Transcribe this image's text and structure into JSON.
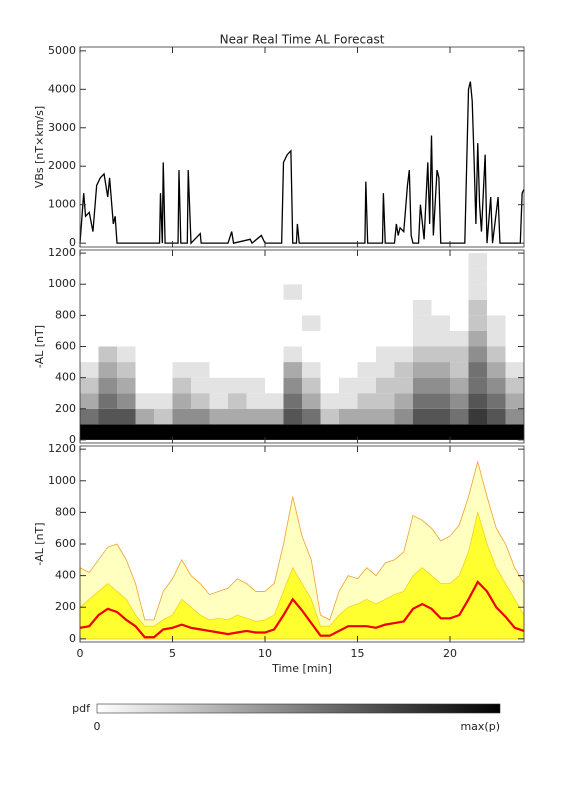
{
  "title": "Near Real Time AL Forecast",
  "colorbar": {
    "label": "pdf",
    "min_label": "0",
    "max_label": "max(p)"
  },
  "chart_data": [
    {
      "type": "line",
      "ylabel": "VBs [nT×km/s]",
      "color": "#000000",
      "xlim": [
        0,
        24
      ],
      "xticks": [
        0,
        5,
        10,
        15,
        20
      ],
      "ylim": [
        -100,
        5100
      ],
      "yticks": [
        0,
        1000,
        2000,
        3000,
        4000,
        5000
      ],
      "x": [
        0,
        0.2,
        0.3,
        0.5,
        0.7,
        0.9,
        1.1,
        1.3,
        1.5,
        1.6,
        1.8,
        1.9,
        2.0,
        4.3,
        4.35,
        4.45,
        4.5,
        4.6,
        5.3,
        5.35,
        5.45,
        5.8,
        5.85,
        6.0,
        6.5,
        6.55,
        8.0,
        8.2,
        8.3,
        9.2,
        9.3,
        9.8,
        10.0,
        10.9,
        11.0,
        11.2,
        11.4,
        11.5,
        11.7,
        11.75,
        11.85,
        15.4,
        15.45,
        15.55,
        16.35,
        16.4,
        16.5,
        17.0,
        17.1,
        17.2,
        17.3,
        17.5,
        17.7,
        17.8,
        17.9,
        18.0,
        18.3,
        18.4,
        18.6,
        18.8,
        18.9,
        19.0,
        19.1,
        19.3,
        19.4,
        19.5,
        20.8,
        21.0,
        21.1,
        21.2,
        21.3,
        21.4,
        21.5,
        21.6,
        21.7,
        21.9,
        22.0,
        22.2,
        22.3,
        22.6,
        22.7,
        23.8,
        23.9,
        24.0
      ],
      "values": [
        0,
        1300,
        700,
        800,
        300,
        1500,
        1700,
        1800,
        1200,
        1700,
        500,
        700,
        0,
        0,
        1300,
        0,
        2100,
        0,
        0,
        1900,
        0,
        0,
        1900,
        0,
        250,
        0,
        0,
        300,
        0,
        100,
        0,
        200,
        0,
        0,
        2100,
        2300,
        2400,
        0,
        0,
        500,
        0,
        0,
        1600,
        0,
        0,
        1300,
        0,
        0,
        500,
        200,
        400,
        300,
        1500,
        1900,
        200,
        0,
        0,
        1000,
        100,
        2100,
        500,
        2800,
        200,
        1900,
        1700,
        0,
        0,
        4000,
        4200,
        3700,
        2200,
        500,
        2600,
        1000,
        300,
        2300,
        0,
        1200,
        0,
        1200,
        0,
        0,
        1300,
        1400
      ]
    },
    {
      "type": "heatmap",
      "ylabel": "-AL [nT]",
      "xlim": [
        0,
        24
      ],
      "xticks": [
        0,
        5,
        10,
        15,
        20
      ],
      "ylim": [
        -20,
        1220
      ],
      "yticks": [
        0,
        200,
        400,
        600,
        800,
        1000,
        1200
      ],
      "xbins": [
        0,
        1,
        2,
        3,
        4,
        5,
        6,
        7,
        8,
        9,
        10,
        11,
        12,
        13,
        14,
        15,
        16,
        17,
        18,
        19,
        20,
        21,
        22,
        23,
        24
      ],
      "ybins": [
        0,
        100,
        200,
        300,
        400,
        500,
        600,
        700,
        800,
        900,
        1000,
        1100,
        1200
      ],
      "zmax": 9,
      "z": [
        [
          9,
          5,
          3,
          2,
          1,
          0,
          0,
          0,
          0,
          0,
          0,
          0
        ],
        [
          9,
          6,
          5,
          4,
          3,
          2,
          0,
          0,
          0,
          0,
          0,
          0
        ],
        [
          9,
          6,
          4,
          3,
          2,
          1,
          0,
          0,
          0,
          0,
          0,
          0
        ],
        [
          9,
          3,
          1,
          0,
          0,
          0,
          0,
          0,
          0,
          0,
          0,
          0
        ],
        [
          9,
          2,
          1,
          0,
          0,
          0,
          0,
          0,
          0,
          0,
          0,
          0
        ],
        [
          9,
          4,
          3,
          2,
          1,
          0,
          0,
          0,
          0,
          0,
          0,
          0
        ],
        [
          9,
          4,
          2,
          1,
          1,
          0,
          0,
          0,
          0,
          0,
          0,
          0
        ],
        [
          9,
          3,
          1,
          1,
          0,
          0,
          0,
          0,
          0,
          0,
          0,
          0
        ],
        [
          9,
          3,
          2,
          1,
          0,
          0,
          0,
          0,
          0,
          0,
          0,
          0
        ],
        [
          9,
          3,
          1,
          1,
          0,
          0,
          0,
          0,
          0,
          0,
          0,
          0
        ],
        [
          9,
          3,
          1,
          0,
          0,
          0,
          0,
          0,
          0,
          0,
          0,
          0
        ],
        [
          9,
          6,
          5,
          4,
          3,
          1,
          0,
          0,
          0,
          1,
          0,
          0
        ],
        [
          9,
          5,
          3,
          2,
          1,
          0,
          0,
          1,
          0,
          0,
          0,
          0
        ],
        [
          9,
          2,
          1,
          0,
          0,
          0,
          0,
          0,
          0,
          0,
          0,
          0
        ],
        [
          9,
          3,
          1,
          1,
          0,
          0,
          0,
          0,
          0,
          0,
          0,
          0
        ],
        [
          9,
          3,
          2,
          1,
          1,
          0,
          0,
          0,
          0,
          0,
          0,
          0
        ],
        [
          9,
          3,
          2,
          2,
          1,
          1,
          0,
          0,
          0,
          0,
          0,
          0
        ],
        [
          9,
          4,
          3,
          2,
          2,
          1,
          0,
          0,
          0,
          0,
          0,
          0
        ],
        [
          9,
          6,
          5,
          4,
          3,
          2,
          1,
          1,
          1,
          0,
          0,
          0
        ],
        [
          9,
          6,
          5,
          4,
          3,
          2,
          1,
          1,
          0,
          0,
          0,
          0
        ],
        [
          9,
          5,
          4,
          3,
          2,
          2,
          1,
          0,
          0,
          0,
          0,
          0
        ],
        [
          9,
          7,
          6,
          5,
          5,
          4,
          3,
          2,
          2,
          1,
          1,
          1
        ],
        [
          9,
          6,
          5,
          4,
          3,
          2,
          1,
          1,
          0,
          0,
          0,
          0
        ],
        [
          9,
          4,
          3,
          2,
          1,
          0,
          0,
          0,
          0,
          0,
          0,
          0
        ]
      ]
    },
    {
      "type": "band",
      "ylabel": "-AL [nT]",
      "xlabel": "Time [min]",
      "xlim": [
        0,
        24
      ],
      "xticks": [
        0,
        5,
        10,
        15,
        20
      ],
      "ylim": [
        -20,
        1220
      ],
      "yticks": [
        0,
        200,
        400,
        600,
        800,
        1000,
        1200
      ],
      "x": [
        0,
        0.5,
        1,
        1.5,
        2,
        2.5,
        3,
        3.5,
        4,
        4.5,
        5,
        5.5,
        6,
        6.5,
        7,
        7.5,
        8,
        8.5,
        9,
        9.5,
        10,
        10.5,
        11,
        11.5,
        12,
        12.5,
        13,
        13.5,
        14,
        14.5,
        15,
        15.5,
        16,
        16.5,
        17,
        17.5,
        18,
        18.5,
        19,
        19.5,
        20,
        20.5,
        21,
        21.5,
        22,
        22.5,
        23,
        23.5,
        24
      ],
      "series": [
        {
          "color": "#ffffc0",
          "edge": "#f0a030",
          "values": [
            450,
            420,
            500,
            580,
            600,
            500,
            350,
            120,
            120,
            300,
            380,
            500,
            400,
            350,
            280,
            300,
            320,
            380,
            350,
            300,
            300,
            350,
            600,
            900,
            650,
            500,
            150,
            120,
            300,
            400,
            380,
            450,
            400,
            480,
            500,
            550,
            780,
            750,
            700,
            620,
            650,
            720,
            900,
            1120,
            900,
            700,
            600,
            450,
            350
          ]
        },
        {
          "color": "#ffff30",
          "edge": "#f8d020",
          "values": [
            200,
            250,
            300,
            350,
            300,
            250,
            150,
            80,
            80,
            120,
            150,
            250,
            200,
            150,
            120,
            130,
            120,
            150,
            130,
            110,
            120,
            150,
            300,
            450,
            350,
            250,
            80,
            80,
            150,
            200,
            220,
            250,
            220,
            250,
            280,
            300,
            400,
            450,
            400,
            350,
            350,
            400,
            550,
            800,
            600,
            450,
            350,
            250,
            150
          ]
        },
        {
          "color": "#ee0000",
          "values": [
            70,
            80,
            150,
            190,
            170,
            120,
            80,
            10,
            10,
            60,
            70,
            90,
            70,
            60,
            50,
            40,
            30,
            40,
            50,
            40,
            40,
            60,
            150,
            250,
            180,
            100,
            20,
            20,
            50,
            80,
            80,
            80,
            70,
            90,
            100,
            110,
            190,
            220,
            190,
            130,
            130,
            150,
            250,
            360,
            300,
            200,
            140,
            70,
            50
          ]
        }
      ]
    }
  ]
}
